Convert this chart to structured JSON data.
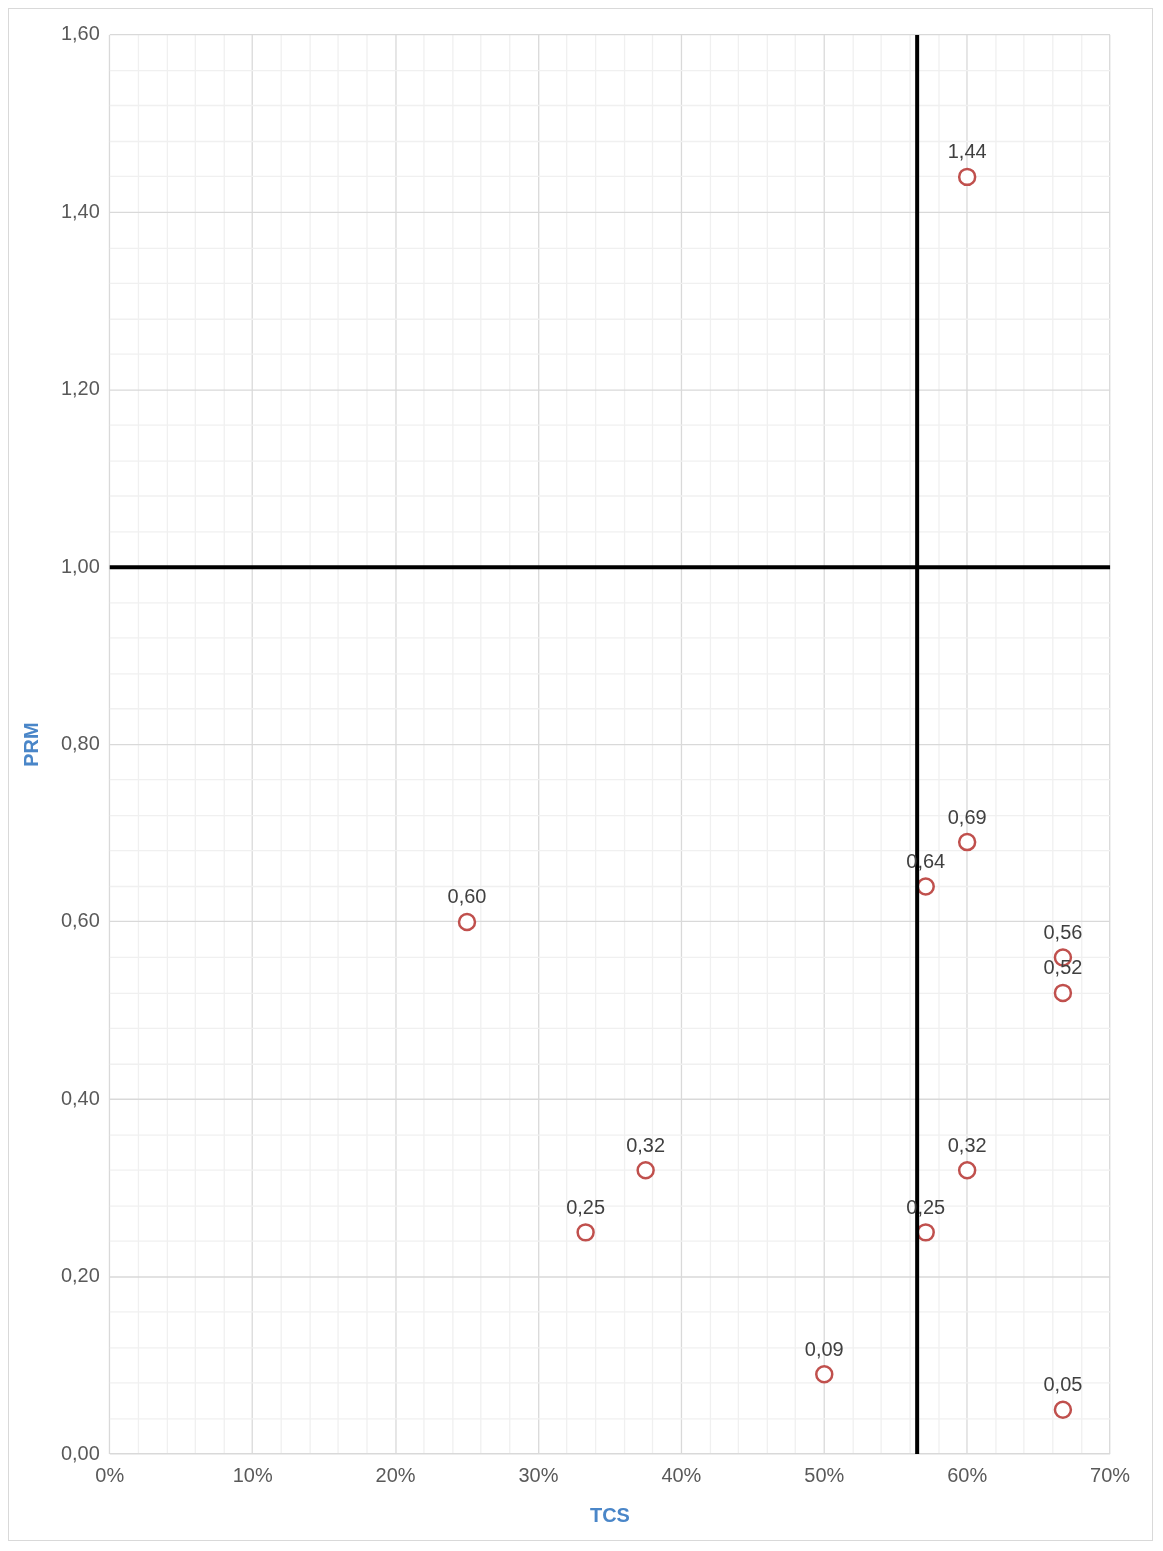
{
  "chart_data": {
    "type": "scatter",
    "xlabel": "TCS",
    "ylabel": "PRM",
    "x": [
      0.25,
      0.333,
      0.375,
      0.5,
      0.571,
      0.571,
      0.6,
      0.6,
      0.6,
      0.667,
      0.667,
      0.667
    ],
    "series": [
      {
        "color": "#c0504d",
        "values": [
          0.6,
          0.25,
          0.32,
          0.09,
          0.64,
          0.25,
          1.44,
          0.69,
          0.32,
          0.56,
          0.52,
          0.05
        ],
        "value_labels": [
          "0,60",
          "0,25",
          "0,32",
          "0,09",
          "0,64",
          "0,25",
          "1,44",
          "0,69",
          "0,32",
          "0,56",
          "0,52",
          "0,05"
        ]
      }
    ],
    "marker": "circle",
    "grid": true,
    "legend": false,
    "xlim": [
      0,
      0.7
    ],
    "xticks": [
      {
        "value": 0,
        "label": "0%"
      },
      {
        "value": 0.02,
        "label": null
      },
      {
        "value": 0.04,
        "label": null
      },
      {
        "value": 0.06,
        "label": null
      },
      {
        "value": 0.08,
        "label": null
      },
      {
        "value": 0.1,
        "label": "10%"
      },
      {
        "value": 0.12,
        "label": null
      },
      {
        "value": 0.14,
        "label": null
      },
      {
        "value": 0.16,
        "label": null
      },
      {
        "value": 0.18,
        "label": null
      },
      {
        "value": 0.2,
        "label": "20%"
      },
      {
        "value": 0.22,
        "label": null
      },
      {
        "value": 0.24,
        "label": null
      },
      {
        "value": 0.26,
        "label": null
      },
      {
        "value": 0.28,
        "label": null
      },
      {
        "value": 0.3,
        "label": "30%"
      },
      {
        "value": 0.32,
        "label": null
      },
      {
        "value": 0.34,
        "label": null
      },
      {
        "value": 0.36,
        "label": null
      },
      {
        "value": 0.38,
        "label": null
      },
      {
        "value": 0.4,
        "label": "40%"
      },
      {
        "value": 0.42,
        "label": null
      },
      {
        "value": 0.44,
        "label": null
      },
      {
        "value": 0.46,
        "label": null
      },
      {
        "value": 0.48,
        "label": null
      },
      {
        "value": 0.5,
        "label": "50%"
      },
      {
        "value": 0.52,
        "label": null
      },
      {
        "value": 0.54,
        "label": null
      },
      {
        "value": 0.56,
        "label": null
      },
      {
        "value": 0.58,
        "label": null
      },
      {
        "value": 0.6,
        "label": "60%"
      },
      {
        "value": 0.62,
        "label": null
      },
      {
        "value": 0.64,
        "label": null
      },
      {
        "value": 0.66,
        "label": null
      },
      {
        "value": 0.68,
        "label": null
      },
      {
        "value": 0.7,
        "label": "70%"
      }
    ],
    "ylim": [
      0,
      1.6
    ],
    "yticks": [
      {
        "value": 0,
        "label": "0,00"
      },
      {
        "value": 0.04,
        "label": null
      },
      {
        "value": 0.08,
        "label": null
      },
      {
        "value": 0.12,
        "label": null
      },
      {
        "value": 0.16,
        "label": null
      },
      {
        "value": 0.2,
        "label": "0,20"
      },
      {
        "value": 0.24,
        "label": null
      },
      {
        "value": 0.28,
        "label": null
      },
      {
        "value": 0.32,
        "label": null
      },
      {
        "value": 0.36,
        "label": null
      },
      {
        "value": 0.4,
        "label": "0,40"
      },
      {
        "value": 0.44,
        "label": null
      },
      {
        "value": 0.48,
        "label": null
      },
      {
        "value": 0.52,
        "label": null
      },
      {
        "value": 0.56,
        "label": null
      },
      {
        "value": 0.6,
        "label": "0,60"
      },
      {
        "value": 0.64,
        "label": null
      },
      {
        "value": 0.68,
        "label": null
      },
      {
        "value": 0.72,
        "label": null
      },
      {
        "value": 0.76,
        "label": null
      },
      {
        "value": 0.8,
        "label": "0,80"
      },
      {
        "value": 0.84,
        "label": null
      },
      {
        "value": 0.88,
        "label": null
      },
      {
        "value": 0.92,
        "label": null
      },
      {
        "value": 0.96,
        "label": null
      },
      {
        "value": 1.0,
        "label": "1,00"
      },
      {
        "value": 1.04,
        "label": null
      },
      {
        "value": 1.08,
        "label": null
      },
      {
        "value": 1.12,
        "label": null
      },
      {
        "value": 1.16,
        "label": null
      },
      {
        "value": 1.2,
        "label": "1,20"
      },
      {
        "value": 1.24,
        "label": null
      },
      {
        "value": 1.28,
        "label": null
      },
      {
        "value": 1.32,
        "label": null
      },
      {
        "value": 1.36,
        "label": null
      },
      {
        "value": 1.4,
        "label": "1,40"
      },
      {
        "value": 1.44,
        "label": null
      },
      {
        "value": 1.48,
        "label": null
      },
      {
        "value": 1.52,
        "label": null
      },
      {
        "value": 1.56,
        "label": null
      },
      {
        "value": 1.6,
        "label": "1,60"
      }
    ],
    "ref_lines": [
      {
        "axis": "x",
        "value": 0.565,
        "color": "#000000"
      },
      {
        "axis": "y",
        "value": 1.0,
        "color": "#000000"
      }
    ]
  }
}
